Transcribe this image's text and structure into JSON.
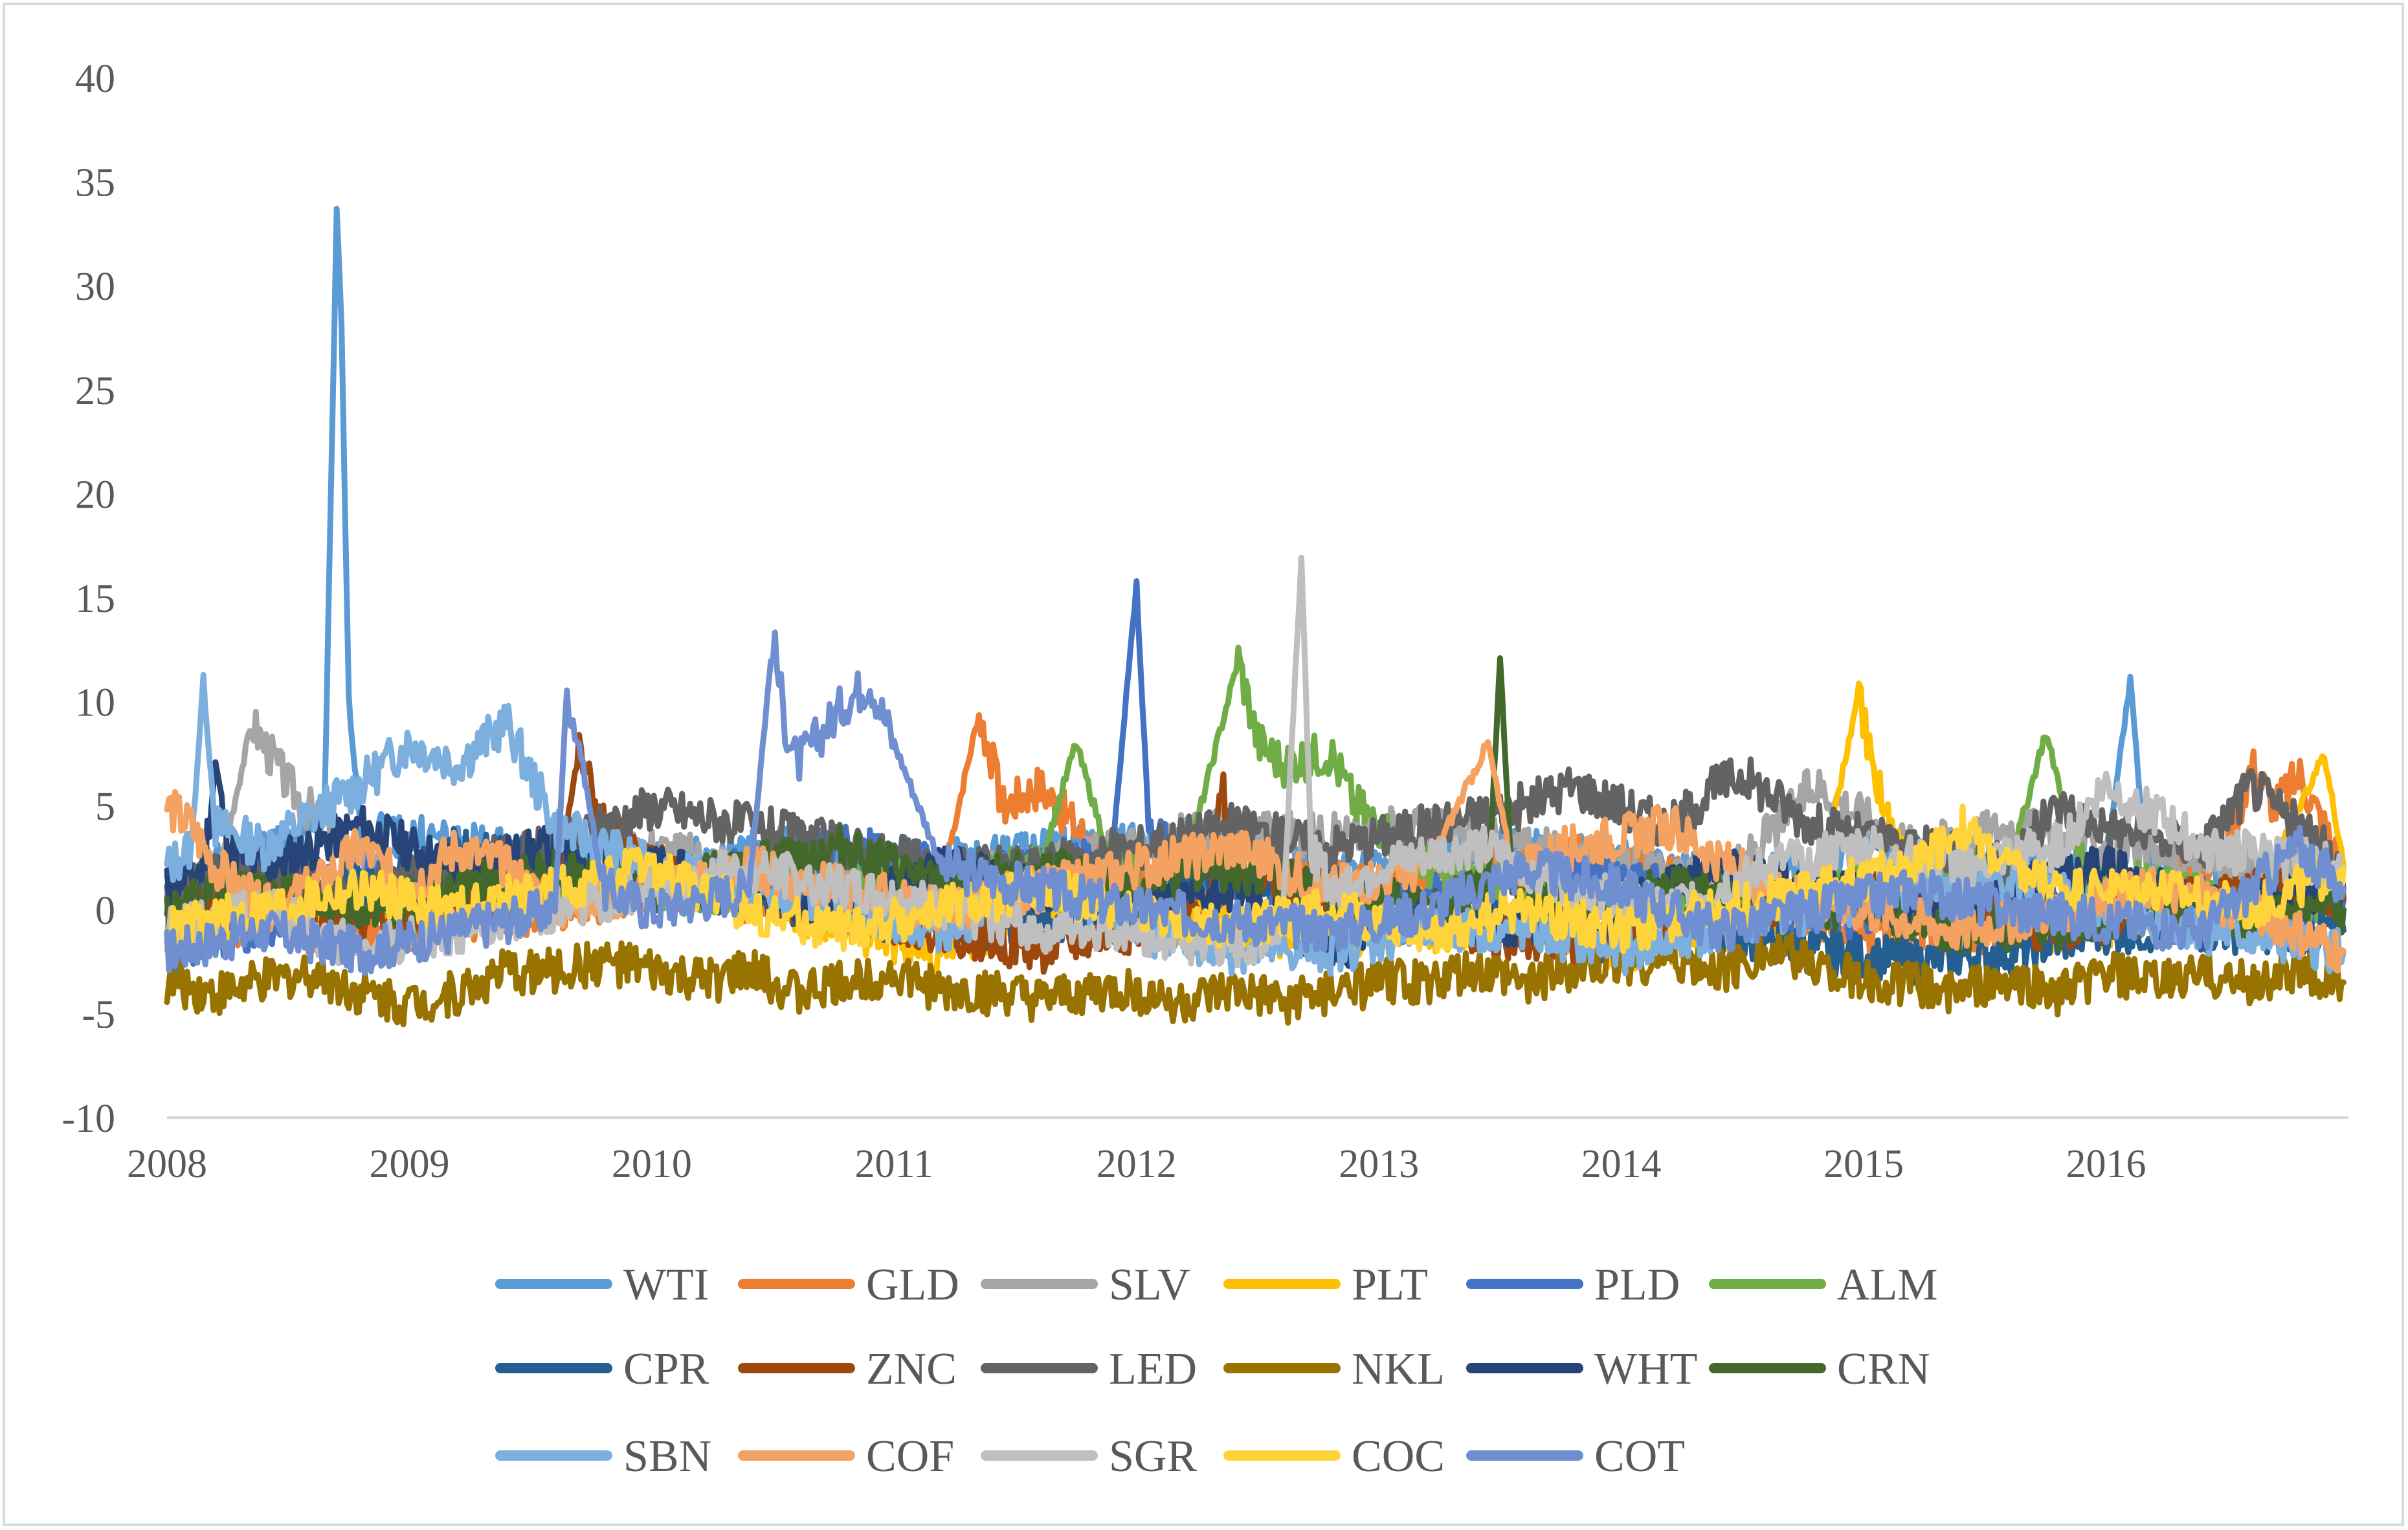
{
  "chart_data": {
    "type": "line",
    "title": "",
    "xlabel": "",
    "ylabel": "",
    "ylim": [
      -10,
      40
    ],
    "yticks": [
      -10,
      -5,
      0,
      5,
      10,
      15,
      20,
      25,
      30,
      35,
      40
    ],
    "xlim": [
      2008.0,
      2017.0
    ],
    "xticks": [
      "2008",
      "2009",
      "2010",
      "2011",
      "2012",
      "2013",
      "2014",
      "2015",
      "2016"
    ],
    "grid": false,
    "legend_position": "bottom",
    "series": [
      {
        "name": "WTI",
        "color": "#5b9bd5",
        "x": [
          2008.0,
          2008.2,
          2008.4,
          2008.6,
          2008.65,
          2008.68,
          2008.7,
          2008.72,
          2008.75,
          2008.8,
          2009.0,
          2009.3,
          2009.5,
          2009.8,
          2010.2,
          2010.6,
          2011.0,
          2011.4,
          2011.8,
          2012.2,
          2012.6,
          2013.0,
          2013.4,
          2013.8,
          2014.2,
          2014.6,
          2015.0,
          2015.4,
          2015.8,
          2016.0,
          2016.1,
          2016.15,
          2016.2,
          2016.6,
          2016.98
        ],
        "values": [
          1.5,
          2.0,
          3.0,
          3.5,
          5,
          22,
          33.5,
          28,
          10,
          4,
          3.5,
          3,
          2.5,
          2,
          2.5,
          3,
          2,
          2.5,
          3,
          3,
          2.5,
          2,
          3,
          2.5,
          2,
          1.5,
          3,
          2,
          2,
          2.5,
          11,
          4,
          2,
          1.5,
          1
        ]
      },
      {
        "name": "GLD",
        "color": "#ed7d31",
        "x": [
          2008.0,
          2008.4,
          2008.8,
          2009.2,
          2009.6,
          2010.0,
          2010.4,
          2010.8,
          2011.2,
          2011.35,
          2011.45,
          2011.6,
          2011.9,
          2012.2,
          2012.6,
          2013.0,
          2013.4,
          2013.8,
          2014.2,
          2014.6,
          2015.0,
          2015.4,
          2015.8,
          2016.2,
          2016.5,
          2016.6,
          2016.7,
          2016.8,
          2016.9,
          2016.98
        ],
        "values": [
          -1,
          -0.5,
          -1.5,
          -0.5,
          0,
          1,
          0.5,
          0,
          1.5,
          9.5,
          5,
          6,
          2,
          1,
          1.5,
          1,
          2,
          2.5,
          1.5,
          0,
          -1,
          -1.5,
          -0.5,
          1,
          3,
          7,
          5,
          6.5,
          4,
          2
        ]
      },
      {
        "name": "SLV",
        "color": "#a5a5a5",
        "x": [
          2008.0,
          2008.2,
          2008.35,
          2008.5,
          2008.8,
          2009.2,
          2009.6,
          2010.0,
          2010.4,
          2010.8,
          2011.2,
          2011.6,
          2012.0,
          2012.4,
          2012.8,
          2013.2,
          2013.6,
          2014.0,
          2014.4,
          2014.8,
          2015.2,
          2015.6,
          2016.0,
          2016.4,
          2016.98
        ],
        "values": [
          -1,
          1,
          9,
          6,
          2,
          0,
          1.5,
          3,
          2,
          1,
          1.5,
          2,
          3,
          4,
          3.5,
          4,
          3,
          2,
          1,
          6,
          3,
          4,
          3,
          2,
          2
        ]
      },
      {
        "name": "PLT",
        "color": "#ffc000",
        "x": [
          2008.0,
          2008.4,
          2008.8,
          2009.2,
          2009.6,
          2010.0,
          2010.4,
          2010.8,
          2011.2,
          2011.6,
          2012.0,
          2012.4,
          2012.8,
          2013.2,
          2013.6,
          2014.0,
          2014.4,
          2014.8,
          2014.98,
          2015.05,
          2015.2,
          2015.4,
          2015.8,
          2016.2,
          2016.6,
          2016.9,
          2016.98
        ],
        "values": [
          -1,
          0,
          0.5,
          -0.5,
          1,
          2,
          1,
          -1,
          -2,
          0,
          -0.5,
          -1,
          -1.5,
          -1,
          -0.5,
          -2,
          -1,
          0,
          10.5,
          6,
          2,
          0.5,
          -1,
          -0.5,
          0,
          7.5,
          2
        ]
      },
      {
        "name": "PLD",
        "color": "#4472c4",
        "x": [
          2008.0,
          2008.4,
          2008.8,
          2009.2,
          2009.6,
          2010.0,
          2010.4,
          2010.8,
          2011.2,
          2011.6,
          2011.9,
          2012.0,
          2012.05,
          2012.2,
          2012.6,
          2013.0,
          2013.4,
          2013.8,
          2014.2,
          2014.6,
          2015.0,
          2015.4,
          2015.8,
          2016.2,
          2016.6,
          2016.98
        ],
        "values": [
          -2,
          -1,
          2,
          1,
          2,
          1,
          2,
          3,
          2,
          2,
          3,
          15.5,
          4,
          2,
          1,
          0,
          1,
          2,
          1,
          0,
          -0.5,
          1,
          0.5,
          1,
          0,
          0.5
        ]
      },
      {
        "name": "ALM",
        "color": "#70ad47",
        "x": [
          2008.0,
          2008.4,
          2008.8,
          2009.2,
          2009.6,
          2010.0,
          2010.4,
          2010.8,
          2011.2,
          2011.6,
          2011.75,
          2011.9,
          2012.2,
          2012.42,
          2012.5,
          2012.6,
          2012.8,
          2012.9,
          2013.2,
          2013.6,
          2014.0,
          2014.4,
          2014.8,
          2015.2,
          2015.6,
          2015.75,
          2015.9,
          2016.2,
          2016.6,
          2016.98
        ],
        "values": [
          0,
          0.5,
          0,
          1,
          1.5,
          1,
          0.5,
          1,
          1.5,
          2,
          8,
          2,
          2,
          12,
          8,
          7,
          7.5,
          5,
          2,
          1,
          0,
          0,
          1,
          1.5,
          2,
          8.5,
          2,
          1,
          0.5,
          0.5
        ]
      },
      {
        "name": "CPR",
        "color": "#255e91",
        "x": [
          2008.0,
          2008.4,
          2008.8,
          2009.2,
          2009.6,
          2010.0,
          2010.4,
          2010.8,
          2011.2,
          2011.6,
          2012.0,
          2012.4,
          2012.8,
          2013.2,
          2013.6,
          2014.0,
          2014.4,
          2014.8,
          2015.2,
          2015.6,
          2016.0,
          2016.4,
          2016.98
        ],
        "values": [
          1,
          2,
          1,
          3,
          2,
          1,
          0.5,
          0,
          -1,
          -0.5,
          0,
          2,
          1,
          0,
          -1,
          -1.5,
          -1,
          -2,
          -2.5,
          -2,
          -1,
          -1,
          -1
        ]
      },
      {
        "name": "ZNC",
        "color": "#9e480e",
        "x": [
          2008.0,
          2008.4,
          2008.8,
          2009.2,
          2009.6,
          2009.7,
          2009.8,
          2010.0,
          2010.4,
          2010.8,
          2011.2,
          2011.6,
          2012.0,
          2012.3,
          2012.35,
          2012.4,
          2012.6,
          2013.0,
          2013.4,
          2013.8,
          2014.2,
          2014.6,
          2015.0,
          2015.4,
          2015.8,
          2016.2,
          2016.6,
          2016.98
        ],
        "values": [
          0,
          1,
          -1,
          0,
          1,
          7.5,
          4,
          2,
          1,
          0,
          -1,
          -2,
          -1,
          0,
          6.5,
          2,
          1,
          0,
          -1,
          -2,
          -1,
          0,
          1,
          0,
          -1,
          0,
          1,
          0.5
        ]
      },
      {
        "name": "LED",
        "color": "#636363",
        "x": [
          2008.0,
          2008.4,
          2008.8,
          2009.2,
          2009.6,
          2010.0,
          2010.4,
          2010.8,
          2011.2,
          2011.6,
          2012.0,
          2012.4,
          2012.8,
          2013.2,
          2013.6,
          2013.8,
          2014.0,
          2014.2,
          2014.4,
          2014.5,
          2014.8,
          2015.2,
          2015.6,
          2015.8,
          2016.0,
          2016.4,
          2016.6,
          2016.98
        ],
        "values": [
          1,
          2,
          1,
          2,
          3,
          5,
          4,
          3,
          2,
          2,
          3,
          4,
          3,
          4,
          5,
          6,
          5,
          4,
          6,
          6.5,
          4,
          3,
          2,
          5,
          4,
          3,
          6,
          2
        ]
      },
      {
        "name": "NKL",
        "color": "#997300",
        "x": [
          2008.0,
          2008.2,
          2008.4,
          2008.6,
          2008.8,
          2009.0,
          2009.2,
          2009.4,
          2009.6,
          2009.8,
          2010.0,
          2010.2,
          2010.4,
          2010.6,
          2010.8,
          2011.0,
          2011.2,
          2011.4,
          2011.6,
          2011.8,
          2012.0,
          2012.2,
          2012.4,
          2012.6,
          2012.8,
          2013.0,
          2013.2,
          2013.4,
          2013.6,
          2013.8,
          2014.0,
          2014.2,
          2014.4,
          2014.6,
          2014.8,
          2015.0,
          2015.2,
          2015.4,
          2015.6,
          2015.8,
          2016.0,
          2016.2,
          2016.4,
          2016.6,
          2016.8,
          2016.98
        ],
        "values": [
          -3.5,
          -4,
          -3.5,
          -3,
          -4,
          -4.5,
          -4,
          -3,
          -3,
          -2.5,
          -3,
          -3.5,
          -3,
          -4,
          -3.5,
          -3,
          -4,
          -4,
          -4.5,
          -4,
          -4,
          -4.5,
          -4,
          -4.5,
          -4,
          -3.5,
          -3.5,
          -3,
          -3.5,
          -3,
          -2.5,
          -2.5,
          -3,
          -2,
          -2.5,
          -3.5,
          -3.5,
          -4,
          -3.5,
          -4,
          -3,
          -3.5,
          -3,
          -3.5,
          -3,
          -3.5
        ]
      },
      {
        "name": "WHT",
        "color": "#264478",
        "x": [
          2008.0,
          2008.15,
          2008.2,
          2008.25,
          2008.4,
          2008.8,
          2009.2,
          2009.6,
          2010.0,
          2010.4,
          2010.8,
          2011.2,
          2011.6,
          2012.0,
          2012.4,
          2012.8,
          2013.2,
          2013.6,
          2014.0,
          2014.4,
          2014.8,
          2015.2,
          2015.6,
          2016.0,
          2016.4,
          2016.98
        ],
        "values": [
          1,
          2,
          7,
          3,
          2,
          4,
          2,
          3,
          2,
          1,
          0,
          2,
          1,
          0,
          1,
          -2,
          0,
          -1,
          0,
          2,
          1,
          0,
          1,
          2,
          0,
          1
        ]
      },
      {
        "name": "CRN",
        "color": "#43682b",
        "x": [
          2008.0,
          2008.4,
          2008.8,
          2009.2,
          2009.6,
          2010.0,
          2010.4,
          2010.8,
          2011.2,
          2011.6,
          2012.0,
          2012.4,
          2012.8,
          2013.2,
          2013.45,
          2013.5,
          2013.55,
          2013.8,
          2014.2,
          2014.6,
          2015.0,
          2015.4,
          2015.8,
          2016.2,
          2016.6,
          2016.98
        ],
        "values": [
          0,
          1,
          0,
          1,
          2,
          1,
          2,
          3,
          1,
          2,
          1,
          2,
          1,
          0,
          1,
          12,
          1,
          0,
          1,
          0.5,
          0,
          -1,
          -1,
          0,
          -0.5,
          0
        ]
      },
      {
        "name": "SBN",
        "color": "#7cafdd",
        "x": [
          2008.0,
          2008.1,
          2008.15,
          2008.2,
          2008.4,
          2008.8,
          2009.0,
          2009.2,
          2009.4,
          2009.6,
          2010.0,
          2010.4,
          2010.8,
          2011.2,
          2011.6,
          2012.0,
          2012.4,
          2012.8,
          2013.2,
          2013.6,
          2014.0,
          2014.4,
          2014.8,
          2015.2,
          2015.6,
          2016.0,
          2016.4,
          2016.98
        ],
        "values": [
          2,
          3,
          11,
          4,
          3,
          6,
          8,
          7,
          9,
          4,
          2,
          1,
          0,
          -1,
          1,
          -1,
          -2,
          -2,
          -1,
          -1,
          -2,
          -1,
          0,
          1,
          1.5,
          0,
          -1,
          -2
        ]
      },
      {
        "name": "COF",
        "color": "#f4a261",
        "x": [
          2008.0,
          2008.1,
          2008.2,
          2008.4,
          2008.6,
          2008.8,
          2009.0,
          2009.2,
          2009.4,
          2009.6,
          2010.0,
          2010.4,
          2010.8,
          2011.2,
          2011.6,
          2012.0,
          2012.4,
          2012.8,
          2013.2,
          2013.45,
          2013.55,
          2013.8,
          2014.2,
          2014.6,
          2015.0,
          2015.4,
          2015.8,
          2016.2,
          2016.6,
          2016.98
        ],
        "values": [
          5,
          4,
          2,
          0,
          1,
          3,
          1,
          3,
          2,
          0,
          1,
          2,
          1,
          0,
          1,
          2,
          3,
          1,
          2,
          8,
          2,
          3,
          4,
          1,
          0,
          -1,
          0,
          1,
          0,
          -2
        ]
      },
      {
        "name": "SGR",
        "color": "#bfbfbf",
        "x": [
          2008.0,
          2008.4,
          2008.8,
          2009.2,
          2009.6,
          2010.0,
          2010.4,
          2010.8,
          2011.2,
          2011.6,
          2012.0,
          2012.4,
          2012.6,
          2012.68,
          2012.72,
          2012.8,
          2013.0,
          2013.4,
          2013.8,
          2014.2,
          2014.6,
          2015.0,
          2015.4,
          2015.8,
          2016.0,
          2016.4,
          2016.98
        ],
        "values": [
          -1,
          0,
          -2,
          -1,
          0,
          1,
          2,
          1,
          0,
          -1,
          -1,
          -2,
          -1,
          17,
          3,
          1,
          2,
          3,
          1,
          0,
          2,
          3,
          2,
          3,
          6,
          3,
          2
        ]
      },
      {
        "name": "COC",
        "color": "#ffd43b",
        "x": [
          2008.0,
          2008.4,
          2008.8,
          2009.2,
          2009.6,
          2010.0,
          2010.4,
          2010.8,
          2011.2,
          2011.6,
          2012.0,
          2012.4,
          2012.8,
          2013.2,
          2013.6,
          2014.0,
          2014.4,
          2014.8,
          2015.2,
          2015.4,
          2015.6,
          2015.8,
          2016.2,
          2016.6,
          2016.98
        ],
        "values": [
          -1,
          0,
          1,
          0,
          1,
          2,
          0,
          -1,
          0,
          1,
          0,
          -1,
          0,
          -1,
          0,
          -1,
          0,
          1,
          2,
          4,
          2,
          1,
          1,
          0,
          2
        ]
      },
      {
        "name": "COT",
        "color": "#6f8fd1",
        "x": [
          2008.0,
          2008.4,
          2008.8,
          2009.2,
          2009.6,
          2009.65,
          2009.7,
          2009.8,
          2010.0,
          2010.4,
          2010.5,
          2010.55,
          2010.6,
          2010.8,
          2010.9,
          2011.0,
          2011.2,
          2011.6,
          2012.0,
          2012.4,
          2012.8,
          2013.2,
          2013.6,
          2014.0,
          2014.4,
          2014.8,
          2015.2,
          2015.6,
          2016.0,
          2016.4,
          2016.8,
          2016.98
        ],
        "values": [
          -2,
          -1,
          -2,
          -1,
          0,
          10.5,
          8,
          1,
          0,
          1,
          13,
          9,
          7,
          10,
          11,
          8,
          2,
          1,
          0,
          -0.5,
          -1,
          0,
          2,
          1,
          -1,
          0,
          1,
          0,
          -0.5,
          -1,
          3,
          1
        ]
      }
    ]
  }
}
